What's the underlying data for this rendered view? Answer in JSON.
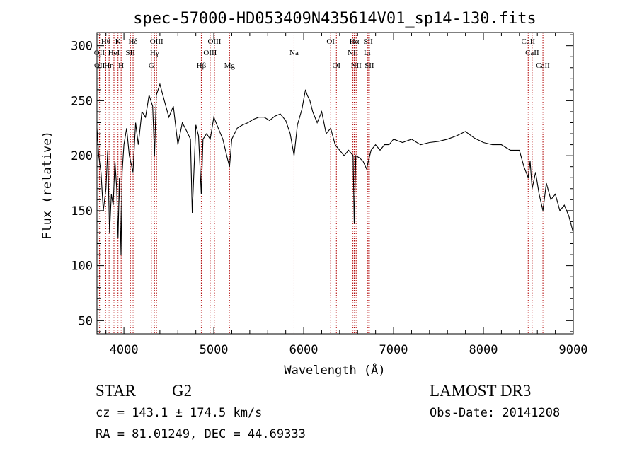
{
  "chart_data": {
    "type": "line",
    "title": "spec-57000-HD053409N435614V01_sp14-130.fits",
    "xlabel": "Wavelength (Å)",
    "ylabel": "Flux (relative)",
    "xlim": [
      3700,
      9000
    ],
    "ylim": [
      38,
      312
    ],
    "xticks": [
      4000,
      5000,
      6000,
      7000,
      8000,
      9000
    ],
    "xtick_labels": [
      "4000",
      "5000",
      "6000",
      "7000",
      "8000",
      "9000"
    ],
    "yticks": [
      50,
      100,
      150,
      200,
      250,
      300
    ],
    "ytick_labels": [
      "50",
      "100",
      "150",
      "200",
      "250",
      "300"
    ],
    "series": [
      {
        "name": "spectrum",
        "color": "#000000",
        "x": [
          3700,
          3720,
          3745,
          3770,
          3800,
          3820,
          3840,
          3860,
          3880,
          3900,
          3920,
          3935,
          3950,
          3968,
          3980,
          4000,
          4030,
          4060,
          4101,
          4130,
          4160,
          4200,
          4240,
          4280,
          4320,
          4340,
          4360,
          4400,
          4450,
          4500,
          4550,
          4600,
          4650,
          4700,
          4740,
          4760,
          4800,
          4830,
          4861,
          4880,
          4920,
          4960,
          5000,
          5050,
          5100,
          5150,
          5175,
          5200,
          5260,
          5320,
          5380,
          5440,
          5500,
          5560,
          5620,
          5680,
          5740,
          5800,
          5850,
          5893,
          5930,
          5980,
          6020,
          6040,
          6070,
          6100,
          6150,
          6200,
          6250,
          6300,
          6350,
          6400,
          6450,
          6500,
          6550,
          6563,
          6580,
          6620,
          6660,
          6700,
          6750,
          6800,
          6850,
          6900,
          6950,
          7000,
          7100,
          7200,
          7300,
          7400,
          7500,
          7600,
          7700,
          7800,
          7900,
          8000,
          8100,
          8200,
          8300,
          8400,
          8450,
          8498,
          8520,
          8542,
          8580,
          8620,
          8662,
          8700,
          8750,
          8800,
          8850,
          8900,
          8950,
          9000
        ],
        "values": [
          225,
          200,
          185,
          150,
          170,
          205,
          130,
          165,
          155,
          195,
          170,
          125,
          180,
          110,
          185,
          210,
          225,
          200,
          185,
          230,
          210,
          240,
          235,
          255,
          245,
          200,
          255,
          265,
          250,
          235,
          245,
          210,
          230,
          222,
          215,
          148,
          228,
          218,
          165,
          215,
          220,
          215,
          235,
          225,
          215,
          198,
          190,
          215,
          225,
          228,
          230,
          233,
          235,
          235,
          232,
          236,
          238,
          232,
          220,
          200,
          228,
          242,
          260,
          255,
          250,
          240,
          230,
          240,
          220,
          225,
          210,
          205,
          200,
          205,
          200,
          138,
          200,
          198,
          195,
          188,
          205,
          210,
          205,
          210,
          210,
          215,
          212,
          215,
          210,
          212,
          213,
          215,
          218,
          222,
          216,
          212,
          210,
          210,
          205,
          205,
          190,
          180,
          195,
          170,
          185,
          165,
          150,
          175,
          160,
          165,
          150,
          155,
          145,
          130
        ]
      }
    ],
    "line_markers": [
      {
        "label": "Hθ",
        "x": 3798,
        "row": 1
      },
      {
        "label": "OII",
        "x": 3727,
        "row": 2
      },
      {
        "label": "OII",
        "x": 3729,
        "row": 3
      },
      {
        "label": "Hη",
        "x": 3835,
        "row": 3
      },
      {
        "label": "HeI",
        "x": 3889,
        "row": 2
      },
      {
        "label": "K",
        "x": 3934,
        "row": 1
      },
      {
        "label": "SII",
        "x": 4072,
        "row": 2
      },
      {
        "label": "H",
        "x": 3969,
        "row": 3
      },
      {
        "label": "Hδ",
        "x": 4102,
        "row": 1
      },
      {
        "label": "OIII",
        "x": 4363,
        "row": 1
      },
      {
        "label": "Hγ",
        "x": 4340,
        "row": 2
      },
      {
        "label": "G",
        "x": 4305,
        "row": 3
      },
      {
        "label": "Hβ",
        "x": 4861,
        "row": 3
      },
      {
        "label": "OIII",
        "x": 5007,
        "row": 1
      },
      {
        "label": "OIII",
        "x": 4959,
        "row": 2
      },
      {
        "label": "Mg",
        "x": 5175,
        "row": 3
      },
      {
        "label": "Na",
        "x": 5893,
        "row": 2
      },
      {
        "label": "OI",
        "x": 6300,
        "row": 1
      },
      {
        "label": "OI",
        "x": 6364,
        "row": 3
      },
      {
        "label": "Hα",
        "x": 6563,
        "row": 1
      },
      {
        "label": "NII",
        "x": 6548,
        "row": 2
      },
      {
        "label": "NII",
        "x": 6584,
        "row": 3
      },
      {
        "label": "SII",
        "x": 6717,
        "row": 1
      },
      {
        "label": "Li",
        "x": 6707,
        "row": 2
      },
      {
        "label": "SII",
        "x": 6731,
        "row": 3
      },
      {
        "label": "CaII",
        "x": 8498,
        "row": 1
      },
      {
        "label": "CaII",
        "x": 8542,
        "row": 2
      },
      {
        "label": "CaII",
        "x": 8662,
        "row": 3
      }
    ],
    "marker_color": "#b00000"
  },
  "info": {
    "object_class": "STAR",
    "subclass": "G2",
    "survey": "LAMOST DR3",
    "redshift_text": "cz = 143.1 ± 174.5 km/s",
    "obs_date_text": "Obs-Date: 20141208",
    "coords_text": "RA =  81.01249, DEC =  44.69333"
  }
}
